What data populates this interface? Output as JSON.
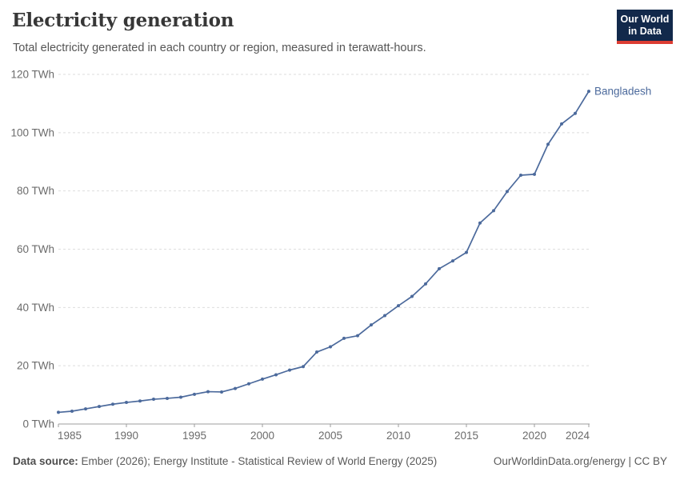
{
  "header": {
    "title": "Electricity generation",
    "subtitle": "Total electricity generated in each country or region, measured in terawatt-hours.",
    "logo": {
      "line1": "Our World",
      "line2": "in Data",
      "bg_color": "#12294b",
      "accent_color": "#dc3d33"
    }
  },
  "chart_data": {
    "type": "line",
    "title": "Electricity generation",
    "unit": "TWh",
    "xlabel": "",
    "ylabel": "",
    "ylim": [
      0,
      120
    ],
    "yticks": [
      0,
      20,
      40,
      60,
      80,
      100,
      120
    ],
    "ytick_suffix": " TWh",
    "xticks": [
      1985,
      1990,
      1995,
      2000,
      2005,
      2010,
      2015,
      2020,
      2024
    ],
    "grid": "dashed-horizontal",
    "legend": "end-of-line-label",
    "x": [
      1985,
      1986,
      1987,
      1988,
      1989,
      1990,
      1991,
      1992,
      1993,
      1994,
      1995,
      1996,
      1997,
      1998,
      1999,
      2000,
      2001,
      2002,
      2003,
      2004,
      2005,
      2006,
      2007,
      2008,
      2009,
      2010,
      2011,
      2012,
      2013,
      2014,
      2015,
      2016,
      2017,
      2018,
      2019,
      2020,
      2021,
      2022,
      2023,
      2024
    ],
    "series": [
      {
        "name": "Bangladesh",
        "color": "#4C6A9C",
        "values": [
          4.0,
          4.4,
          5.2,
          6.0,
          6.8,
          7.4,
          7.9,
          8.5,
          8.8,
          9.2,
          10.2,
          11.1,
          11.0,
          12.2,
          13.8,
          15.4,
          16.9,
          18.5,
          19.7,
          24.7,
          26.5,
          29.4,
          30.3,
          34.0,
          37.2,
          40.6,
          43.8,
          48.1,
          53.3,
          56.0,
          58.9,
          69.0,
          73.2,
          79.8,
          85.4,
          85.7,
          96.0,
          103.0,
          106.6,
          114.2
        ]
      }
    ]
  },
  "footer": {
    "source_label": "Data source:",
    "source_text": " Ember (2026); Energy Institute - Statistical Review of World Energy (2025)",
    "link_text": "OurWorldinData.org/energy | CC BY"
  },
  "colors": {
    "line": "#4C6A9C",
    "grid": "#dedede",
    "axis": "#9e9e9e",
    "tick_label": "#6b6b6b",
    "title": "#373737",
    "subtitle": "#555555"
  }
}
